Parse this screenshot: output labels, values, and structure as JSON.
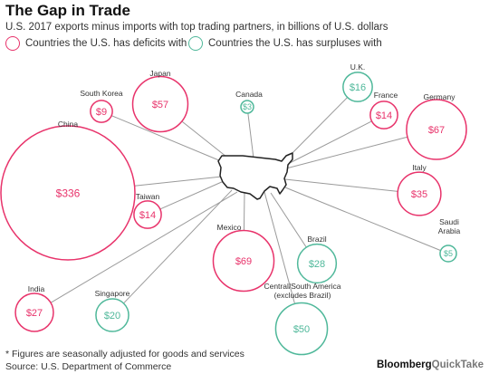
{
  "header": {
    "title": "The Gap in Trade",
    "subtitle": "U.S. 2017 exports minus imports with top trading partners, in billions of U.S. dollars"
  },
  "legend": {
    "deficit_label": "Countries the U.S. has deficits with",
    "surplus_label": "Countries the U.S. has surpluses with"
  },
  "colors": {
    "deficit": "#e8336b",
    "surplus": "#4fb89a",
    "connector": "#9a9a9a",
    "map_fill": "#ffffff",
    "map_stroke": "#222222"
  },
  "chart_data": {
    "type": "bubble-map",
    "title": "The Gap in Trade",
    "subtitle": "U.S. 2017 exports minus imports with top trading partners, in billions of U.S. dollars",
    "unit_prefix": "$",
    "partners": [
      {
        "name": "China",
        "value": 336,
        "type": "deficit"
      },
      {
        "name": "Japan",
        "value": 57,
        "type": "deficit"
      },
      {
        "name": "South Korea",
        "value": 9,
        "type": "deficit"
      },
      {
        "name": "Taiwan",
        "value": 14,
        "type": "deficit"
      },
      {
        "name": "Mexico",
        "value": 69,
        "type": "deficit"
      },
      {
        "name": "India",
        "value": 27,
        "type": "deficit"
      },
      {
        "name": "France",
        "value": 14,
        "type": "deficit"
      },
      {
        "name": "Germany",
        "value": 67,
        "type": "deficit"
      },
      {
        "name": "Italy",
        "value": 35,
        "type": "deficit"
      },
      {
        "name": "Canada",
        "value": 3,
        "type": "surplus"
      },
      {
        "name": "U.K.",
        "value": 16,
        "type": "surplus"
      },
      {
        "name": "Brazil",
        "value": 28,
        "type": "surplus"
      },
      {
        "name": "Saudi Arabia",
        "value": 5,
        "type": "surplus"
      },
      {
        "name": "Singapore",
        "value": 20,
        "type": "surplus"
      },
      {
        "name": "Central/South America (excludes Brazil)",
        "value": 50,
        "type": "surplus"
      }
    ]
  },
  "footer": {
    "footnote": "* Figures are seasonally adjusted for goods and services",
    "source": "Source: U.S. Department of Commerce",
    "brand_main": "Bloomberg",
    "brand_sub": "QuickTake"
  }
}
